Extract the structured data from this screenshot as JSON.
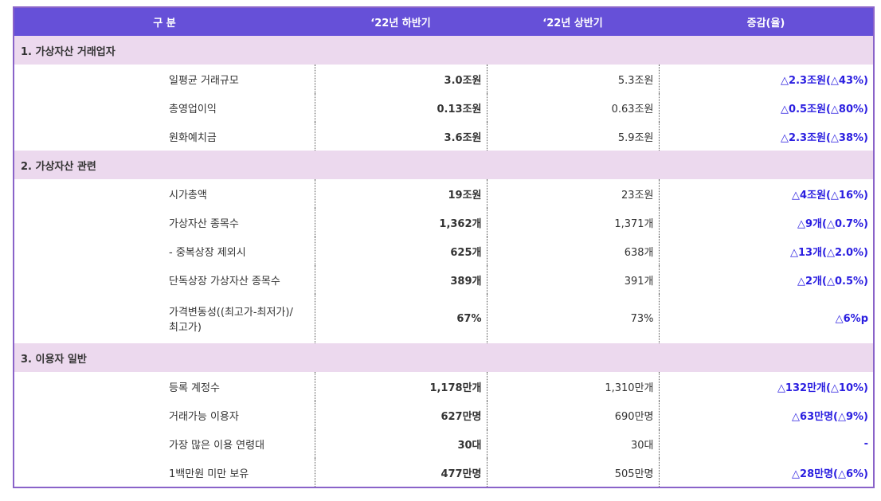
{
  "table": {
    "header": [
      "구 분",
      "‘22년 하반기",
      "‘22년 상반기",
      "증감(율)"
    ],
    "sections": [
      {
        "title": "1. 가상자산 거래업자",
        "rows": [
          [
            "일평균 거래규모",
            "3.0조원",
            "5.3조원",
            "△2.3조원(△43%)"
          ],
          [
            "총영업이익",
            "0.13조원",
            "0.63조원",
            "△0.5조원(△80%)"
          ],
          [
            "원화예치금",
            "3.6조원",
            "5.9조원",
            "△2.3조원(△38%)"
          ]
        ]
      },
      {
        "title": "2. 가상자산 관련",
        "rows": [
          [
            "시가총액",
            "19조원",
            "23조원",
            "△4조원(△16%)"
          ],
          [
            "가상자산 종목수",
            "1,362개",
            "1,371개",
            "△9개(△0.7%)"
          ],
          [
            "- 중복상장 제외시",
            "625개",
            "638개",
            "△13개(△2.0%)"
          ],
          [
            "단독상장 가상자산 종목수",
            "389개",
            "391개",
            "△2개(△0.5%)"
          ],
          [
            "가격변동성((최고가-최저가)/\n최고가)",
            "67%",
            "73%",
            "△6%p"
          ]
        ]
      },
      {
        "title": "3. 이용자 일반",
        "rows": [
          [
            "등록 계정수",
            "1,178만개",
            "1,310만개",
            "△132만개(△10%)"
          ],
          [
            "거래가능 이용자",
            "627만명",
            "690만명",
            "△63만명(△9%)"
          ],
          [
            "가장 많은 이용 연령대",
            "30대",
            "30대",
            "-"
          ],
          [
            "1백만원 미만 보유",
            "477만명",
            "505만명",
            "△28만명(△6%)"
          ]
        ]
      }
    ]
  }
}
